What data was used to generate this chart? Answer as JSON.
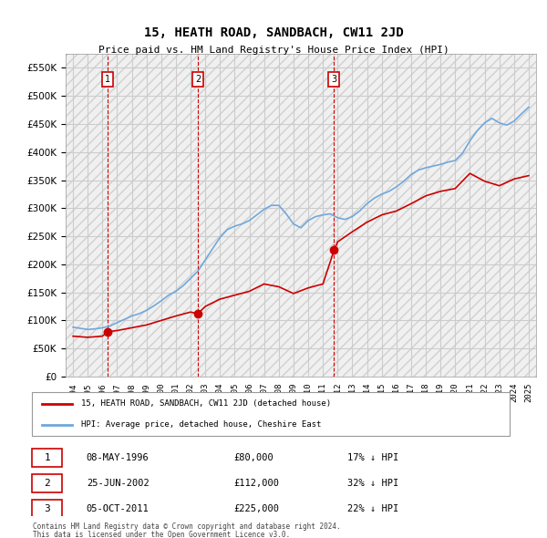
{
  "title": "15, HEATH ROAD, SANDBACH, CW11 2JD",
  "subtitle": "Price paid vs. HM Land Registry's House Price Index (HPI)",
  "legend_line1": "15, HEATH ROAD, SANDBACH, CW11 2JD (detached house)",
  "legend_line2": "HPI: Average price, detached house, Cheshire East",
  "footnote1": "Contains HM Land Registry data © Crown copyright and database right 2024.",
  "footnote2": "This data is licensed under the Open Government Licence v3.0.",
  "transactions": [
    {
      "num": 1,
      "date": "08-MAY-1996",
      "price": 80000,
      "pct": "17%",
      "dir": "↓",
      "year": 1996.36
    },
    {
      "num": 2,
      "date": "25-JUN-2002",
      "price": 112000,
      "pct": "32%",
      "dir": "↓",
      "year": 2002.49
    },
    {
      "num": 3,
      "date": "05-OCT-2011",
      "price": 225000,
      "pct": "22%",
      "dir": "↓",
      "year": 2011.76
    }
  ],
  "hpi_color": "#6fa8dc",
  "price_color": "#cc0000",
  "vline_color": "#cc0000",
  "background_color": "#ffffff",
  "grid_color": "#cccccc",
  "ylim": [
    0,
    575000
  ],
  "yticks": [
    0,
    50000,
    100000,
    150000,
    200000,
    250000,
    300000,
    350000,
    400000,
    450000,
    500000,
    550000
  ],
  "hpi_data": {
    "years": [
      1994.0,
      1994.5,
      1995.0,
      1995.5,
      1996.0,
      1996.5,
      1997.0,
      1997.5,
      1998.0,
      1998.5,
      1999.0,
      1999.5,
      2000.0,
      2000.5,
      2001.0,
      2001.5,
      2002.0,
      2002.5,
      2003.0,
      2003.5,
      2004.0,
      2004.5,
      2005.0,
      2005.5,
      2006.0,
      2006.5,
      2007.0,
      2007.5,
      2008.0,
      2008.5,
      2009.0,
      2009.5,
      2010.0,
      2010.5,
      2011.0,
      2011.5,
      2012.0,
      2012.5,
      2013.0,
      2013.5,
      2014.0,
      2014.5,
      2015.0,
      2015.5,
      2016.0,
      2016.5,
      2017.0,
      2017.5,
      2018.0,
      2018.5,
      2019.0,
      2019.5,
      2020.0,
      2020.5,
      2021.0,
      2021.5,
      2022.0,
      2022.5,
      2023.0,
      2023.5,
      2024.0,
      2024.5,
      2025.0
    ],
    "values": [
      88000,
      86000,
      84000,
      85000,
      87000,
      90000,
      96000,
      102000,
      108000,
      112000,
      118000,
      126000,
      135000,
      145000,
      152000,
      162000,
      175000,
      188000,
      208000,
      228000,
      248000,
      262000,
      268000,
      272000,
      278000,
      288000,
      298000,
      305000,
      305000,
      290000,
      272000,
      265000,
      278000,
      285000,
      288000,
      290000,
      283000,
      280000,
      285000,
      295000,
      308000,
      318000,
      325000,
      330000,
      338000,
      348000,
      360000,
      368000,
      372000,
      375000,
      378000,
      382000,
      385000,
      398000,
      420000,
      438000,
      452000,
      460000,
      452000,
      448000,
      455000,
      468000,
      480000
    ]
  },
  "price_data": {
    "years": [
      1996.36,
      2002.49,
      2011.76
    ],
    "values": [
      80000,
      112000,
      225000
    ],
    "extended_years": [
      1994.0,
      1995.0,
      1996.0,
      1996.36,
      1997.0,
      1998.0,
      1999.0,
      2000.0,
      2001.0,
      2002.0,
      2002.49,
      2003.0,
      2004.0,
      2005.0,
      2006.0,
      2007.0,
      2008.0,
      2009.0,
      2010.0,
      2011.0,
      2011.76,
      2012.0,
      2013.0,
      2014.0,
      2015.0,
      2016.0,
      2017.0,
      2018.0,
      2019.0,
      2020.0,
      2021.0,
      2022.0,
      2023.0,
      2024.0,
      2025.0
    ],
    "extended_values": [
      72000,
      70000,
      72000,
      80000,
      82000,
      87000,
      92000,
      100000,
      108000,
      115000,
      112000,
      125000,
      138000,
      145000,
      152000,
      165000,
      160000,
      148000,
      158000,
      165000,
      225000,
      240000,
      258000,
      275000,
      288000,
      295000,
      308000,
      322000,
      330000,
      335000,
      362000,
      348000,
      340000,
      352000,
      358000
    ]
  }
}
